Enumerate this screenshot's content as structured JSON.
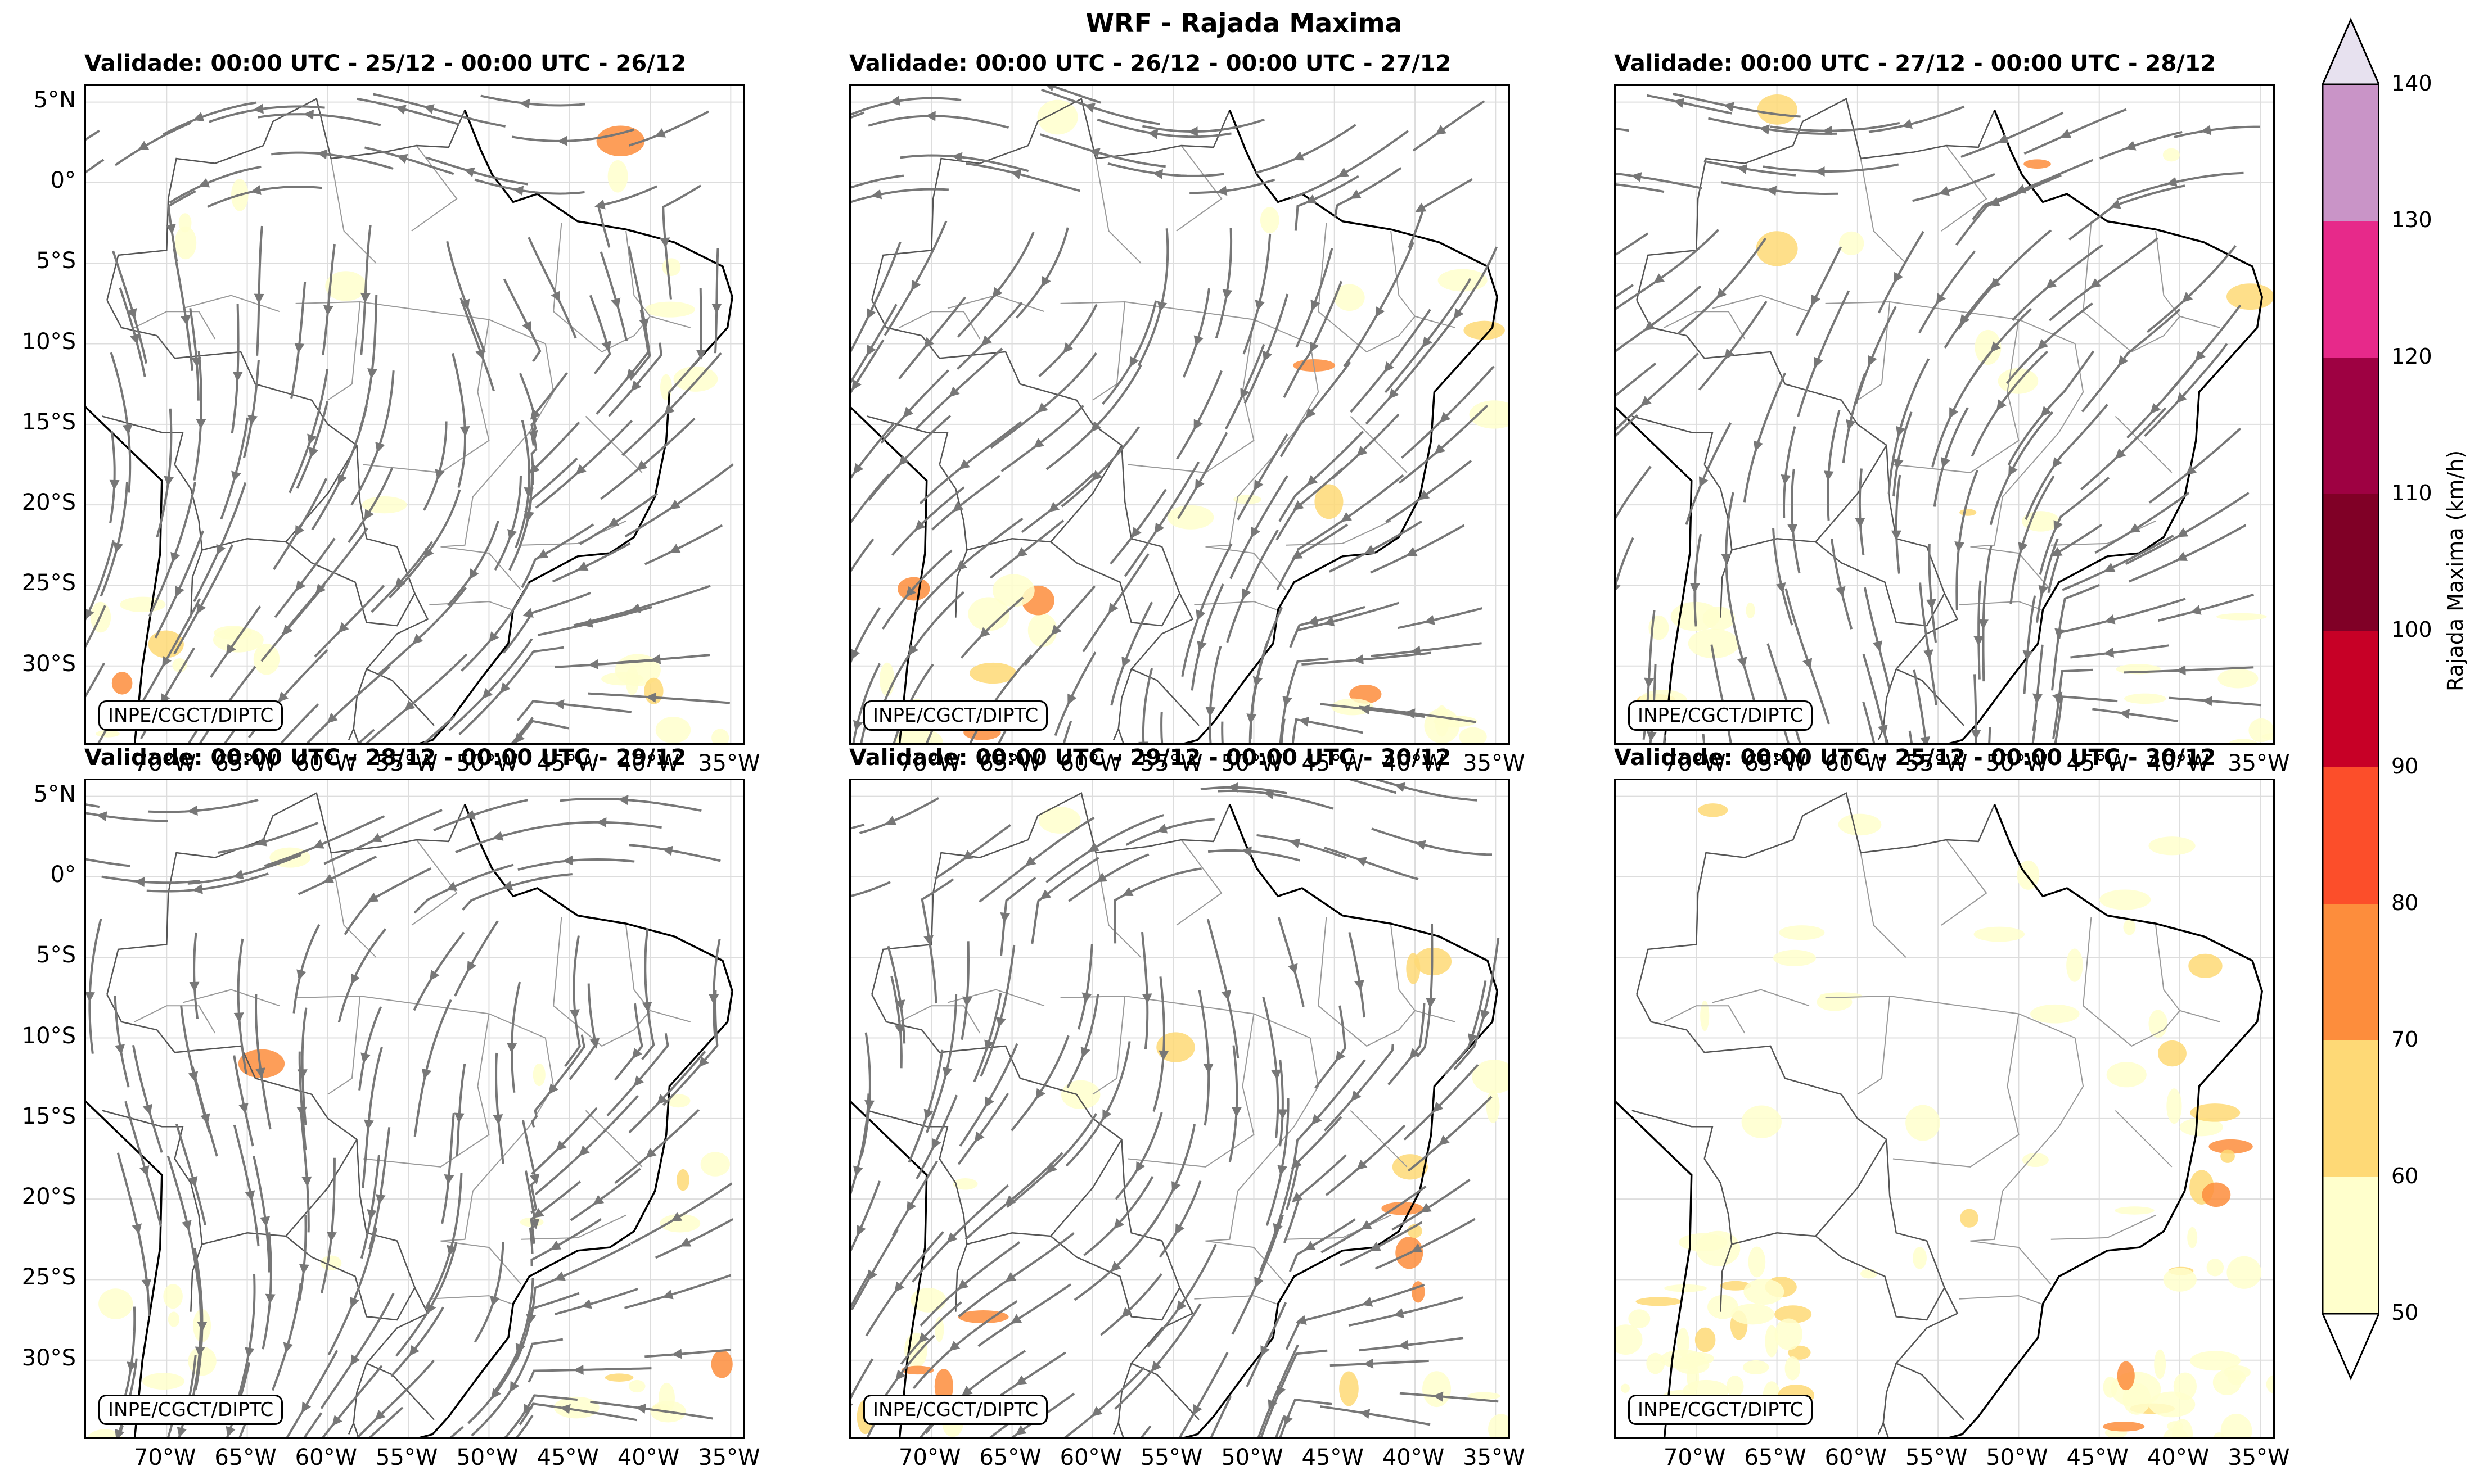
{
  "figure_title": "WRF - Rajada Maxima",
  "credit": "INPE/CGCT/DIPTC",
  "panels": [
    {
      "id": "p1",
      "title": "Validade: 00:00 UTC - 25/12 - 00:00 UTC - 26/12",
      "streamlines": true
    },
    {
      "id": "p2",
      "title": "Validade: 00:00 UTC - 26/12 - 00:00 UTC - 27/12",
      "streamlines": true
    },
    {
      "id": "p3",
      "title": "Validade: 00:00 UTC - 27/12 - 00:00 UTC - 28/12",
      "streamlines": true
    },
    {
      "id": "p4",
      "title": "Validade: 00:00 UTC - 28/12 - 00:00 UTC - 29/12",
      "streamlines": true
    },
    {
      "id": "p5",
      "title": "Validade: 00:00 UTC - 29/12 - 00:00 UTC - 30/12",
      "streamlines": true
    },
    {
      "id": "p6",
      "title": "Validade: 00:00 UTC - 25/12 - 00:00 UTC - 30/12",
      "streamlines": false
    }
  ],
  "lat_ticks": [
    "5°N",
    "0°",
    "5°S",
    "10°S",
    "15°S",
    "20°S",
    "25°S",
    "30°S"
  ],
  "lon_ticks": [
    "70°W",
    "65°W",
    "60°W",
    "55°W",
    "50°W",
    "45°W",
    "40°W",
    "35°W"
  ],
  "colorbar": {
    "label": "Rajada Maxima (km/h)",
    "ticks": [
      "50",
      "60",
      "70",
      "80",
      "90",
      "100",
      "110",
      "120",
      "130",
      "140"
    ],
    "colors": [
      "#ffffcc",
      "#fed976",
      "#fd8d3c",
      "#fc4e2a",
      "#c70026",
      "#800026",
      "#9e0142",
      "#e7298a",
      "#c994c7",
      "#e7e1ef"
    ],
    "under_color": "#ffffff",
    "over_color": "#e7e1ef"
  },
  "colors": {
    "stream": "#777777",
    "border": "#999999",
    "coast": "#000000",
    "grid": "#dddddd"
  }
}
